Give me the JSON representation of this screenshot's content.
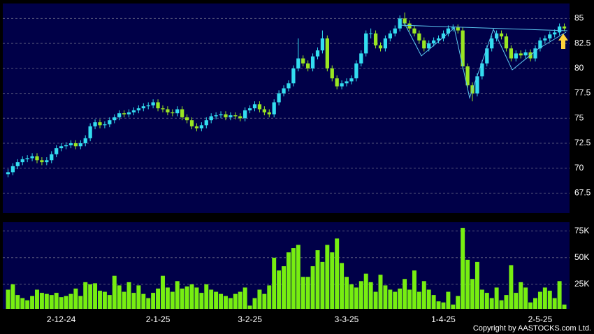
{
  "chart_data": [
    {
      "type": "candlestick",
      "x": [
        null,
        null,
        null,
        null,
        null,
        null,
        null,
        null,
        null,
        null,
        null,
        "2-12-24",
        null,
        null,
        null,
        null,
        null,
        null,
        null,
        null,
        null,
        null,
        null,
        null,
        null,
        null,
        null,
        null,
        null,
        null,
        null,
        "2-1-25",
        null,
        null,
        null,
        null,
        null,
        null,
        null,
        null,
        null,
        null,
        null,
        null,
        null,
        null,
        null,
        null,
        null,
        null,
        "3-2-25",
        null,
        null,
        null,
        null,
        null,
        null,
        null,
        null,
        null,
        null,
        null,
        null,
        null,
        null,
        null,
        null,
        null,
        null,
        null,
        "3-3-25",
        null,
        null,
        null,
        null,
        null,
        null,
        null,
        null,
        null,
        null,
        null,
        null,
        null,
        null,
        null,
        null,
        null,
        null,
        null,
        "1-4-25",
        null,
        null,
        null,
        null,
        null,
        null,
        null,
        null,
        null,
        null,
        null,
        null,
        null,
        null,
        null,
        null,
        null,
        null,
        null,
        "2-5-25",
        null,
        null,
        null,
        null,
        null
      ],
      "open": [
        69.4,
        69.6,
        70.2,
        70.6,
        70.9,
        71.0,
        71.2,
        70.8,
        70.6,
        70.8,
        71.4,
        72.0,
        72.2,
        72.3,
        72.5,
        72.2,
        72.5,
        73.0,
        74.2,
        74.6,
        74.3,
        74.4,
        74.8,
        75.1,
        75.5,
        75.4,
        75.6,
        75.8,
        76.0,
        76.2,
        76.3,
        76.6,
        76.0,
        75.9,
        75.6,
        75.5,
        75.9,
        75.1,
        74.8,
        74.2,
        74.0,
        74.3,
        74.8,
        75.2,
        75.3,
        75.4,
        75.1,
        75.3,
        75.2,
        75.0,
        75.8,
        76.0,
        76.4,
        75.9,
        75.6,
        75.4,
        76.6,
        77.5,
        78.0,
        78.5,
        80.0,
        81.0,
        80.5,
        80.0,
        81.2,
        81.8,
        83.0,
        80.0,
        79.0,
        78.2,
        78.5,
        78.7,
        79.0,
        80.5,
        81.5,
        83.5,
        83.5,
        82.3,
        82.0,
        83.0,
        83.5,
        84.0,
        85.0,
        84.5,
        84.0,
        83.5,
        82.8,
        82.0,
        82.5,
        82.8,
        83.0,
        83.5,
        84.0,
        84.1,
        83.8,
        80.2,
        78.3,
        77.5,
        79.2,
        80.5,
        82.0,
        83.0,
        83.5,
        83.2,
        82.0,
        81.0,
        81.5,
        81.3,
        81.6,
        81.0,
        82.0,
        82.8,
        83.0,
        83.4,
        83.6,
        84.2
      ],
      "high": [
        69.9,
        70.5,
        70.9,
        71.2,
        71.3,
        71.5,
        71.5,
        71.1,
        71.1,
        71.7,
        72.3,
        72.5,
        72.6,
        72.8,
        72.8,
        72.8,
        73.3,
        74.5,
        74.9,
        74.9,
        74.7,
        75.1,
        75.4,
        75.8,
        75.8,
        75.9,
        76.1,
        76.3,
        76.5,
        76.6,
        76.9,
        76.9,
        76.3,
        76.2,
        75.9,
        76.2,
        76.2,
        75.4,
        75.1,
        74.5,
        74.6,
        75.1,
        75.5,
        75.6,
        75.7,
        75.7,
        75.6,
        75.6,
        75.5,
        76.1,
        76.3,
        76.7,
        76.7,
        76.2,
        75.9,
        76.9,
        77.8,
        78.3,
        78.8,
        80.3,
        83.0,
        81.3,
        80.8,
        81.5,
        82.1,
        83.8,
        83.3,
        80.3,
        79.3,
        78.8,
        79.0,
        79.3,
        80.8,
        81.8,
        83.8,
        84.0,
        83.8,
        82.6,
        83.3,
        83.8,
        84.3,
        85.3,
        85.6,
        84.8,
        84.3,
        83.8,
        83.1,
        82.8,
        83.1,
        83.3,
        83.8,
        84.3,
        84.4,
        84.4,
        84.1,
        80.5,
        78.6,
        79.5,
        80.8,
        82.3,
        83.3,
        83.8,
        83.8,
        83.5,
        82.3,
        81.8,
        81.8,
        81.9,
        81.9,
        82.3,
        83.1,
        83.3,
        83.7,
        83.9,
        84.5,
        84.5
      ],
      "low": [
        69.1,
        69.3,
        69.9,
        70.3,
        70.6,
        70.7,
        70.5,
        70.3,
        70.3,
        70.5,
        71.1,
        71.7,
        71.9,
        72.0,
        71.9,
        71.9,
        72.2,
        72.7,
        73.9,
        74.0,
        74.0,
        74.1,
        74.5,
        74.8,
        75.1,
        75.1,
        75.3,
        75.5,
        75.7,
        75.9,
        76.0,
        75.7,
        75.6,
        75.3,
        75.2,
        75.2,
        74.8,
        74.5,
        73.9,
        73.7,
        73.7,
        74.0,
        74.5,
        74.9,
        75.0,
        74.8,
        74.8,
        74.9,
        74.7,
        74.7,
        75.5,
        75.7,
        75.6,
        75.3,
        75.1,
        75.1,
        76.3,
        77.2,
        77.7,
        78.2,
        79.7,
        80.2,
        79.7,
        79.7,
        80.9,
        81.5,
        79.7,
        78.7,
        77.9,
        77.9,
        78.2,
        78.4,
        78.7,
        80.2,
        81.2,
        83.0,
        82.0,
        81.7,
        81.7,
        82.7,
        83.2,
        83.7,
        84.2,
        83.7,
        83.2,
        82.5,
        81.7,
        81.7,
        82.2,
        82.5,
        82.7,
        83.2,
        83.7,
        83.5,
        79.9,
        78.0,
        76.7,
        77.2,
        78.9,
        80.2,
        81.7,
        82.7,
        82.9,
        81.7,
        80.7,
        80.7,
        81.0,
        81.0,
        80.7,
        80.7,
        81.7,
        82.5,
        82.7,
        83.1,
        83.3,
        83.7
      ],
      "close": [
        69.6,
        70.2,
        70.6,
        70.9,
        71.0,
        71.2,
        70.8,
        70.6,
        70.8,
        71.4,
        72.0,
        72.2,
        72.3,
        72.5,
        72.2,
        72.5,
        73.0,
        74.2,
        74.6,
        74.3,
        74.4,
        74.8,
        75.1,
        75.5,
        75.4,
        75.6,
        75.8,
        76.0,
        76.2,
        76.3,
        76.6,
        76.0,
        75.9,
        75.6,
        75.5,
        75.9,
        75.1,
        74.8,
        74.2,
        74.0,
        74.3,
        74.8,
        75.2,
        75.3,
        75.4,
        75.1,
        75.3,
        75.2,
        75.0,
        75.8,
        76.0,
        76.4,
        75.9,
        75.6,
        75.4,
        76.6,
        77.5,
        78.0,
        78.5,
        80.0,
        81.0,
        80.5,
        80.0,
        81.2,
        81.8,
        83.0,
        80.0,
        79.0,
        78.2,
        78.5,
        78.7,
        79.0,
        80.5,
        81.5,
        83.5,
        83.5,
        82.3,
        82.0,
        83.0,
        83.5,
        84.0,
        85.0,
        84.5,
        84.0,
        83.5,
        82.8,
        82.0,
        82.5,
        82.8,
        83.0,
        83.5,
        84.0,
        84.1,
        83.8,
        80.2,
        78.3,
        77.5,
        79.2,
        80.5,
        82.0,
        83.0,
        83.5,
        83.2,
        82.0,
        81.0,
        81.5,
        81.3,
        81.6,
        81.0,
        82.0,
        82.8,
        83.0,
        83.4,
        83.6,
        84.2,
        84.0
      ],
      "up_color": "#33ddf0",
      "down_color": "#99e622",
      "ylim": [
        65.5,
        86.5
      ],
      "yticks": [
        67.5,
        70,
        72.5,
        75,
        77.5,
        80,
        82.5,
        85
      ],
      "grid": true
    },
    {
      "type": "bar",
      "values": [
        20000,
        25000,
        15000,
        12000,
        10000,
        14000,
        20000,
        17000,
        16000,
        15000,
        17000,
        13000,
        14000,
        16000,
        21000,
        14000,
        27000,
        25000,
        26000,
        19000,
        18000,
        15000,
        33000,
        24000,
        18000,
        27000,
        17000,
        24000,
        16000,
        12000,
        17000,
        21000,
        33000,
        22000,
        18000,
        28000,
        21000,
        23000,
        25000,
        22000,
        17000,
        25000,
        20000,
        18000,
        16000,
        14000,
        12000,
        16000,
        18000,
        22000,
        5000,
        12000,
        20000,
        16000,
        24000,
        50000,
        38000,
        42000,
        55000,
        59000,
        62000,
        32000,
        32000,
        42000,
        57000,
        46000,
        62000,
        55000,
        68000,
        45000,
        32000,
        25000,
        22000,
        28000,
        35000,
        27000,
        18000,
        34000,
        24000,
        20000,
        18000,
        21000,
        30000,
        20000,
        38000,
        18000,
        28000,
        20000,
        15000,
        9000,
        8000,
        18000,
        6000,
        14000,
        78000,
        48000,
        30000,
        46000,
        20000,
        17000,
        12000,
        22000,
        10000,
        15000,
        43000,
        17000,
        27000,
        22000,
        8000,
        12000,
        18000,
        22000,
        19000,
        12000,
        28000,
        6000
      ],
      "color": "#77ee11",
      "ylim": [
        0,
        82000
      ],
      "yticks": [
        {
          "value": 25000,
          "label": "25K"
        },
        {
          "value": 50000,
          "label": "50K"
        },
        {
          "value": 75000,
          "label": "75K"
        }
      ],
      "grid": true
    },
    {
      "type": "text",
      "copyright": "Copyright by AASTOCKS.com Ltd."
    }
  ]
}
